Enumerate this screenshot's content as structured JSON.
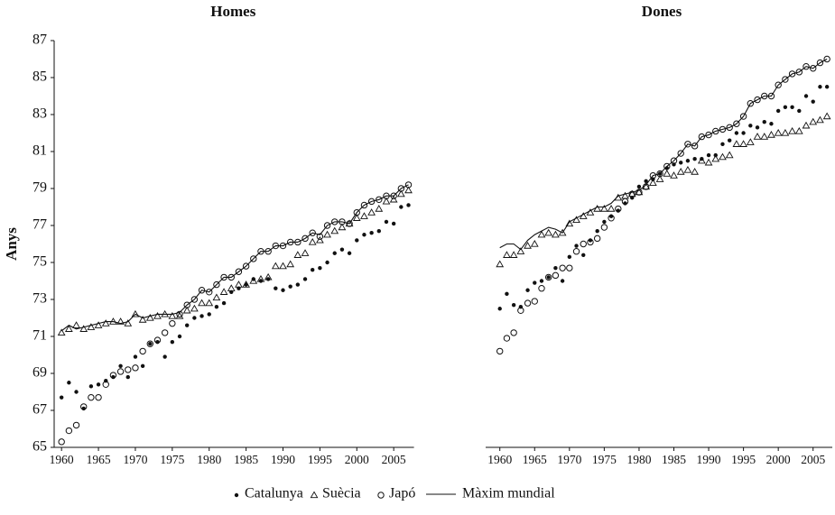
{
  "chart_data": [
    {
      "type": "line",
      "title": "Homes",
      "ylabel": "Anys",
      "ylim": [
        65,
        87
      ],
      "yticks": [
        65,
        67,
        69,
        71,
        73,
        75,
        77,
        79,
        81,
        83,
        85,
        87
      ],
      "xlim": [
        1959,
        2007.5
      ],
      "xticks": [
        1960,
        1965,
        1970,
        1975,
        1980,
        1985,
        1990,
        1995,
        2000,
        2005
      ],
      "x": [
        1960,
        1961,
        1962,
        1963,
        1964,
        1965,
        1966,
        1967,
        1968,
        1969,
        1970,
        1971,
        1972,
        1973,
        1974,
        1975,
        1976,
        1977,
        1978,
        1979,
        1980,
        1981,
        1982,
        1983,
        1984,
        1985,
        1986,
        1987,
        1988,
        1989,
        1990,
        1991,
        1992,
        1993,
        1994,
        1995,
        1996,
        1997,
        1998,
        1999,
        2000,
        2001,
        2002,
        2003,
        2004,
        2005,
        2006,
        2007
      ],
      "series": [
        {
          "name": "Catalunya",
          "marker": "dot",
          "color": "#111111",
          "values": [
            67.7,
            68.5,
            68.0,
            67.1,
            68.3,
            68.4,
            68.6,
            68.8,
            69.4,
            68.8,
            69.9,
            69.4,
            70.6,
            70.7,
            69.9,
            70.7,
            71.0,
            71.6,
            72.0,
            72.1,
            72.2,
            72.6,
            72.8,
            73.4,
            73.6,
            73.8,
            74.1,
            74.0,
            74.1,
            73.6,
            73.5,
            73.7,
            73.8,
            74.1,
            74.6,
            74.7,
            75.0,
            75.5,
            75.7,
            75.5,
            76.2,
            76.5,
            76.6,
            76.7,
            77.2,
            77.1,
            78.0,
            78.1
          ]
        },
        {
          "name": "Suècia",
          "marker": "triangle",
          "color": "#111111",
          "values": [
            71.2,
            71.4,
            71.6,
            71.4,
            71.5,
            71.6,
            71.7,
            71.8,
            71.8,
            71.7,
            72.2,
            71.9,
            72.0,
            72.1,
            72.2,
            72.1,
            72.1,
            72.4,
            72.5,
            72.8,
            72.8,
            73.1,
            73.4,
            73.6,
            73.8,
            73.8,
            74.0,
            74.1,
            74.2,
            74.8,
            74.8,
            74.9,
            75.4,
            75.5,
            76.1,
            76.2,
            76.5,
            76.7,
            76.9,
            77.1,
            77.4,
            77.5,
            77.7,
            77.9,
            78.3,
            78.4,
            78.7,
            78.9
          ]
        },
        {
          "name": "Japó",
          "marker": "circle",
          "color": "#111111",
          "values": [
            65.3,
            65.9,
            66.2,
            67.2,
            67.7,
            67.7,
            68.4,
            68.9,
            69.1,
            69.2,
            69.3,
            70.2,
            70.6,
            70.8,
            71.2,
            71.7,
            72.2,
            72.7,
            73.0,
            73.5,
            73.4,
            73.8,
            74.2,
            74.2,
            74.5,
            74.8,
            75.2,
            75.6,
            75.6,
            75.9,
            75.9,
            76.1,
            76.1,
            76.3,
            76.6,
            76.4,
            77.0,
            77.2,
            77.2,
            77.1,
            77.7,
            78.1,
            78.3,
            78.4,
            78.6,
            78.6,
            79.0,
            79.2
          ]
        },
        {
          "name": "Màxim mundial",
          "marker": "line",
          "color": "#111111",
          "values": [
            71.3,
            71.6,
            71.4,
            71.5,
            71.6,
            71.7,
            71.8,
            71.8,
            71.7,
            71.8,
            72.2,
            72.0,
            72.1,
            72.2,
            72.2,
            72.2,
            72.3,
            72.7,
            73.0,
            73.5,
            73.4,
            73.8,
            74.2,
            74.2,
            74.5,
            74.8,
            75.2,
            75.6,
            75.6,
            75.9,
            75.9,
            76.1,
            76.1,
            76.3,
            76.6,
            76.5,
            77.0,
            77.2,
            77.2,
            77.1,
            77.7,
            78.1,
            78.3,
            78.4,
            78.6,
            78.6,
            79.0,
            79.2
          ]
        }
      ]
    },
    {
      "type": "line",
      "title": "Dones",
      "ylim": [
        65,
        87
      ],
      "xlim": [
        1959,
        2007.5
      ],
      "xticks": [
        1960,
        1965,
        1970,
        1975,
        1980,
        1985,
        1990,
        1995,
        2000,
        2005
      ],
      "x": [
        1960,
        1961,
        1962,
        1963,
        1964,
        1965,
        1966,
        1967,
        1968,
        1969,
        1970,
        1971,
        1972,
        1973,
        1974,
        1975,
        1976,
        1977,
        1978,
        1979,
        1980,
        1981,
        1982,
        1983,
        1984,
        1985,
        1986,
        1987,
        1988,
        1989,
        1990,
        1991,
        1992,
        1993,
        1994,
        1995,
        1996,
        1997,
        1998,
        1999,
        2000,
        2001,
        2002,
        2003,
        2004,
        2005,
        2006,
        2007
      ],
      "series": [
        {
          "marker": "dot",
          "color": "#111111",
          "values": [
            72.5,
            73.3,
            72.7,
            72.6,
            73.5,
            73.9,
            74.0,
            74.2,
            74.7,
            74.0,
            75.3,
            75.9,
            75.4,
            76.2,
            76.7,
            77.2,
            77.5,
            77.8,
            78.2,
            78.5,
            79.1,
            79.4,
            79.5,
            79.8,
            80.1,
            80.3,
            80.4,
            80.5,
            80.6,
            80.6,
            80.8,
            80.8,
            81.4,
            81.6,
            82.0,
            82.0,
            82.4,
            82.3,
            82.6,
            82.5,
            83.2,
            83.4,
            83.4,
            83.2,
            84.0,
            83.7,
            84.5,
            84.5
          ]
        },
        {
          "marker": "triangle",
          "color": "#111111",
          "values": [
            74.9,
            75.4,
            75.4,
            75.6,
            75.9,
            76.0,
            76.5,
            76.6,
            76.5,
            76.6,
            77.1,
            77.3,
            77.5,
            77.7,
            77.9,
            77.9,
            77.9,
            78.5,
            78.6,
            78.7,
            78.8,
            79.1,
            79.3,
            79.5,
            79.8,
            79.7,
            79.9,
            80.0,
            79.9,
            80.5,
            80.4,
            80.6,
            80.7,
            80.8,
            81.4,
            81.4,
            81.5,
            81.8,
            81.8,
            81.9,
            82.0,
            82.0,
            82.1,
            82.1,
            82.4,
            82.6,
            82.7,
            82.9
          ]
        },
        {
          "marker": "circle",
          "color": "#111111",
          "values": [
            70.2,
            70.9,
            71.2,
            72.4,
            72.8,
            72.9,
            73.6,
            74.2,
            74.3,
            74.7,
            74.7,
            75.6,
            76.0,
            76.1,
            76.3,
            76.9,
            77.4,
            77.9,
            78.3,
            78.7,
            78.8,
            79.1,
            79.7,
            79.8,
            80.2,
            80.5,
            80.9,
            81.4,
            81.3,
            81.8,
            81.9,
            82.1,
            82.2,
            82.3,
            82.5,
            82.9,
            83.6,
            83.8,
            84.0,
            84.0,
            84.6,
            84.9,
            85.2,
            85.3,
            85.6,
            85.5,
            85.8,
            86.0
          ]
        },
        {
          "marker": "line",
          "color": "#111111",
          "values": [
            75.8,
            76.0,
            76.0,
            75.7,
            76.2,
            76.5,
            76.7,
            76.9,
            76.8,
            76.6,
            77.2,
            77.4,
            77.6,
            77.8,
            78.0,
            78.0,
            78.2,
            78.6,
            78.7,
            78.8,
            78.9,
            79.2,
            79.7,
            79.8,
            80.2,
            80.5,
            80.9,
            81.4,
            81.3,
            81.8,
            81.9,
            82.1,
            82.2,
            82.3,
            82.5,
            82.9,
            83.6,
            83.8,
            84.0,
            84.0,
            84.6,
            84.9,
            85.2,
            85.3,
            85.6,
            85.5,
            85.8,
            86.0
          ]
        }
      ]
    }
  ]
}
